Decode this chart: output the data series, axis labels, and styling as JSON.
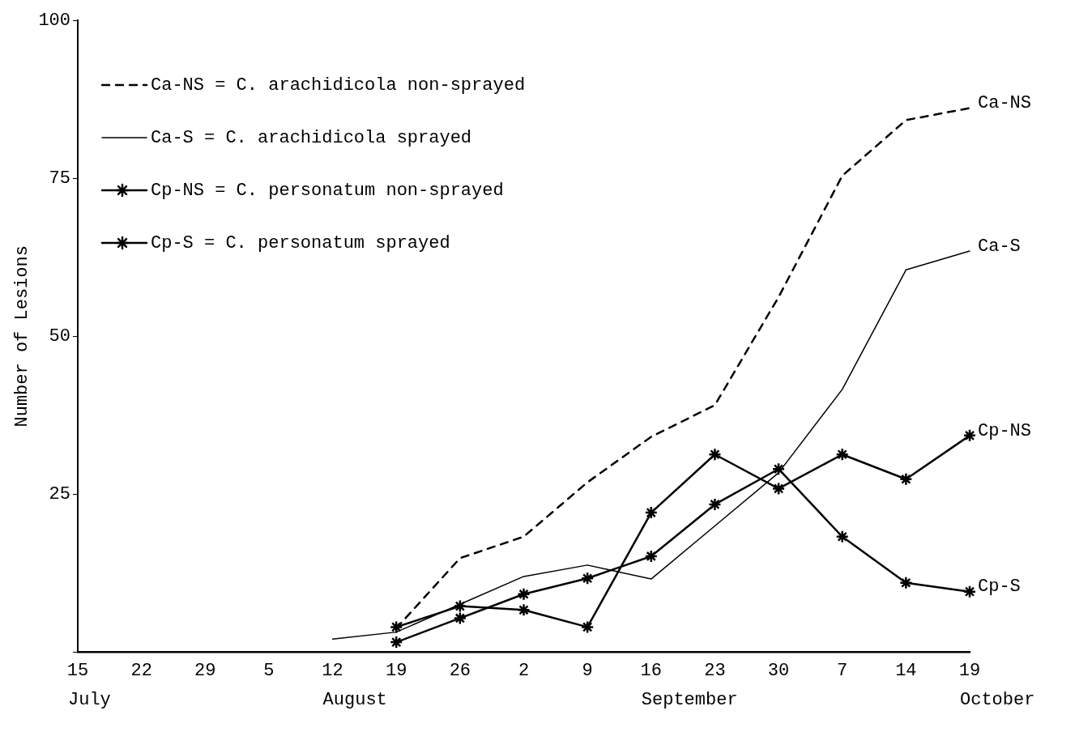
{
  "chart_data": {
    "type": "line",
    "ylabel": "Number of Lesions",
    "categories": [
      "15",
      "22",
      "29",
      "5",
      "12",
      "19",
      "26",
      "2",
      "9",
      "16",
      "23",
      "30",
      "7",
      "14",
      "19"
    ],
    "ylim": [
      0,
      100
    ],
    "yticks": [
      {
        "value": 0,
        "label": null
      },
      25,
      50,
      75,
      100
    ],
    "grid": false,
    "legend": "top left",
    "series": [
      {
        "name": "Ca-NS = C. arachidicola non-sprayed",
        "color": "#000000",
        "line_style": "dashed",
        "marker": "none",
        "values": [
          null,
          null,
          null,
          null,
          null,
          3.8,
          14.9,
          18.3,
          26.9,
          34.1,
          39.1,
          56.2,
          75.4,
          84.2,
          86.1
        ]
      },
      {
        "name": "Ca-S = C. arachidicola sprayed",
        "color": "#000000",
        "line_style": "solid",
        "marker": "none",
        "values": [
          null,
          null,
          null,
          null,
          2.1,
          3.2,
          7.6,
          12,
          13.8,
          11.6,
          20,
          28.4,
          41.6,
          60.5,
          63.5
        ]
      },
      {
        "name": "Cp-NS = C. personatum non-sprayed",
        "color": "#000000",
        "line_style": "solid",
        "marker": "cross",
        "values": [
          null,
          null,
          null,
          null,
          null,
          4,
          7.3,
          6.7,
          4,
          22.1,
          31.3,
          25.9,
          31.3,
          27.4,
          34.3
        ]
      },
      {
        "name": "Cp-S = C. personatum sprayed",
        "color": "#000000",
        "line_style": "solid",
        "marker": "cross",
        "values": [
          null,
          null,
          null,
          null,
          null,
          1.6,
          5.4,
          9.2,
          11.7,
          15.2,
          23.4,
          29,
          18.3,
          11,
          9.6
        ]
      }
    ],
    "annotations": [
      "Ca-NS",
      "Ca-S",
      "Cp-NS",
      "Cp-S",
      "July",
      "August",
      "September",
      "October"
    ]
  }
}
